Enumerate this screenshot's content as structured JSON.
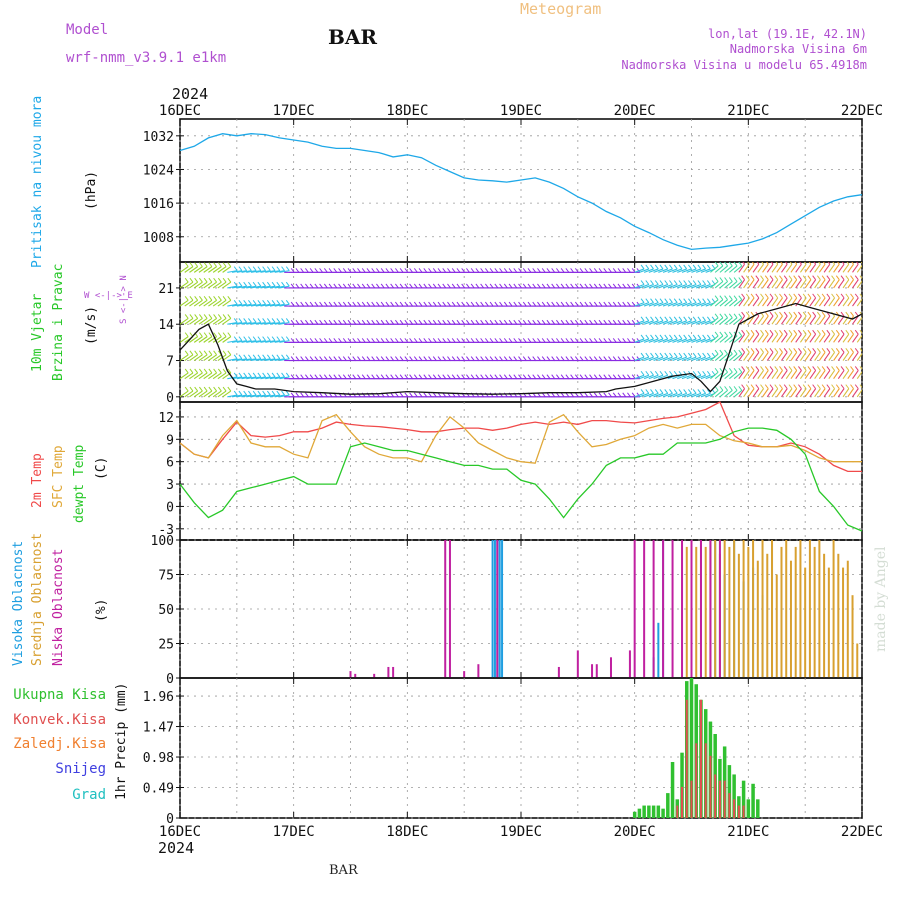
{
  "header": {
    "title": "Meteogram",
    "station": "BAR",
    "model_label": "Model",
    "model_name": "wrf-nmm_v3.9.1 e1km",
    "location": "lon,lat (19.1E, 42.1N)",
    "elevation": "Nadmorska Visina 6m",
    "model_elevation": "Nadmorska Visina u modelu 65.4918m",
    "year_top": "2024",
    "year_bottom": "2024",
    "footer_station": "BAR",
    "credit": "made by Angel"
  },
  "colors": {
    "pressure": "#1ea8e8",
    "temp2m": "#f04a4a",
    "sfc": "#e0a838",
    "dewpt": "#28c828",
    "high_cloud": "#1e9ee0",
    "mid_cloud": "#d8a030",
    "low_cloud": "#c020a0",
    "precip_total": "#30c030",
    "precip_conv": "#e05050",
    "snow": "#4040e0",
    "hail": "#20c0c0",
    "title_color": "#f0c080",
    "meta_color": "#b050d0"
  },
  "x_axis": {
    "labels": [
      "16DEC",
      "17DEC",
      "18DEC",
      "19DEC",
      "20DEC",
      "21DEC",
      "22DEC"
    ],
    "start": 0,
    "end": 144
  },
  "panels": {
    "pressure": {
      "label": "Pritisak na nivou mora",
      "unit": "(hPa)"
    },
    "wind": {
      "label_a": "10m Vjetar",
      "label_b": "Brzina i Pravac",
      "unit": "(m/s)",
      "compass": "W <-|-> E",
      "compass_b": "S <-|-> N"
    },
    "temp": {
      "label_a": "2m Temp",
      "label_b": "SFC Temp",
      "label_c": "dewpt Temp",
      "unit": "(C)"
    },
    "cloud": {
      "label_a": "Visoka Oblacnost",
      "label_b": "Srednja Oblacnost",
      "label_c": "Niska Oblacnost",
      "unit": "(%)"
    },
    "precip": {
      "legend": [
        "Ukupna Kisa",
        "Konvek.Kisa",
        "Zaledj.Kisa",
        "Snijeg",
        "Grad"
      ],
      "unit": "1hr Precip (mm)"
    }
  },
  "chart_data": [
    {
      "type": "line",
      "ylim": [
        1002,
        1036
      ],
      "yticks": [
        1008,
        1016,
        1024,
        1032
      ],
      "ytick_labels": [
        "1008",
        "1016",
        "1024",
        "1032"
      ],
      "series": [
        {
          "x": [
            0,
            3,
            6,
            9,
            12,
            15,
            18,
            21,
            24,
            27,
            30,
            33,
            36,
            39,
            42,
            45,
            48,
            51,
            54,
            57,
            60,
            63,
            66,
            69,
            72,
            75,
            78,
            81,
            84,
            87,
            90,
            93,
            96,
            99,
            102,
            105,
            108,
            111,
            114,
            117,
            120,
            123,
            126,
            129,
            132,
            135,
            138,
            141,
            144
          ],
          "values": [
            1028.5,
            1029.5,
            1031.5,
            1032.5,
            1032,
            1032.5,
            1032.3,
            1031.5,
            1031,
            1030.5,
            1029.5,
            1029,
            1029,
            1028.5,
            1028,
            1027,
            1027.5,
            1026.8,
            1025,
            1023.5,
            1022,
            1021.5,
            1021.3,
            1021,
            1021.5,
            1022,
            1021,
            1019.5,
            1017.5,
            1016,
            1014,
            1012.5,
            1010.5,
            1009,
            1007.3,
            1006,
            1005,
            1005.3,
            1005.5,
            1006,
            1006.5,
            1007.5,
            1009,
            1011,
            1013,
            1015,
            1016.5,
            1017.5,
            1018
          ]
        }
      ]
    },
    {
      "type": "line",
      "ylim": [
        -1,
        26
      ],
      "yticks": [
        0,
        7,
        14,
        21
      ],
      "ytick_labels": [
        "0",
        "7",
        "14",
        "21"
      ],
      "series": [
        {
          "x": [
            0,
            2,
            4,
            6,
            8,
            10,
            12,
            14,
            16,
            18,
            20,
            24,
            30,
            36,
            42,
            48,
            54,
            60,
            66,
            72,
            78,
            84,
            90,
            92,
            96,
            100,
            104,
            108,
            110,
            112,
            114,
            118,
            122,
            126,
            130,
            134,
            138,
            142,
            144
          ],
          "values": [
            9,
            11,
            13,
            14,
            10,
            5,
            2.5,
            2,
            1.5,
            1.5,
            1.5,
            1,
            0.8,
            0.5,
            0.6,
            1,
            0.8,
            0.6,
            0.5,
            0.6,
            0.8,
            0.8,
            1,
            1.5,
            2,
            3,
            4,
            4.5,
            3,
            1,
            3,
            14,
            16,
            17,
            18,
            17,
            16,
            15,
            16
          ]
        }
      ]
    },
    {
      "type": "line",
      "ylim": [
        -4.5,
        14
      ],
      "yticks": [
        -3,
        0,
        3,
        6,
        9,
        12
      ],
      "ytick_labels": [
        "-3",
        "0",
        "3",
        "6",
        "9",
        "12"
      ],
      "series": [
        {
          "x": [
            0,
            3,
            6,
            9,
            12,
            15,
            18,
            21,
            24,
            27,
            30,
            33,
            36,
            39,
            42,
            45,
            48,
            51,
            54,
            57,
            60,
            63,
            66,
            69,
            72,
            75,
            78,
            81,
            84,
            87,
            90,
            93,
            96,
            99,
            102,
            105,
            108,
            111,
            114,
            117,
            120,
            123,
            126,
            129,
            132,
            135,
            138,
            141,
            144
          ],
          "values": [
            8.5,
            7,
            6.5,
            9,
            11.3,
            9.5,
            9.3,
            9.5,
            10,
            10,
            10.5,
            11.3,
            11,
            10.8,
            10.7,
            10.5,
            10.3,
            10,
            10,
            10.3,
            10.5,
            10.5,
            10.2,
            10.5,
            11,
            11.3,
            11,
            11.3,
            11,
            11.5,
            11.5,
            11.3,
            11.2,
            11.5,
            11.8,
            12,
            12.5,
            13,
            14,
            9.5,
            8.2,
            8,
            8,
            8.5,
            8,
            7,
            5.5,
            4.7,
            4.7
          ]
        },
        {
          "x": [
            0,
            3,
            6,
            9,
            12,
            15,
            18,
            21,
            24,
            27,
            30,
            33,
            36,
            39,
            42,
            45,
            48,
            51,
            54,
            57,
            60,
            63,
            66,
            69,
            72,
            75,
            78,
            81,
            84,
            87,
            90,
            93,
            96,
            99,
            102,
            105,
            108,
            111,
            114,
            117,
            120,
            123,
            126,
            129,
            132,
            135,
            138,
            141,
            144
          ],
          "values": [
            8.5,
            7,
            6.5,
            9.5,
            11.5,
            8.5,
            8,
            8,
            7,
            6.5,
            11.5,
            12.3,
            10,
            8,
            7,
            6.5,
            6.5,
            6,
            9.5,
            12,
            10.5,
            8.5,
            7.5,
            6.5,
            6,
            5.8,
            11.3,
            12.3,
            10,
            8,
            8.3,
            9,
            9.5,
            10.5,
            11,
            10.5,
            11,
            11,
            9.5,
            8.8,
            8.5,
            8,
            8,
            8.2,
            7.5,
            6.5,
            6,
            6,
            6
          ]
        },
        {
          "x": [
            0,
            3,
            6,
            9,
            12,
            15,
            18,
            21,
            24,
            27,
            30,
            33,
            36,
            39,
            42,
            45,
            48,
            51,
            54,
            57,
            60,
            63,
            66,
            69,
            72,
            75,
            78,
            81,
            84,
            87,
            90,
            93,
            96,
            99,
            102,
            105,
            108,
            111,
            114,
            117,
            120,
            123,
            126,
            129,
            132,
            135,
            138,
            141,
            144
          ],
          "values": [
            3,
            0.5,
            -1.5,
            -0.5,
            2,
            2.5,
            3,
            3.5,
            4,
            3,
            3,
            3,
            8,
            8.5,
            8,
            7.5,
            7.5,
            7,
            6.5,
            6,
            5.5,
            5.5,
            5,
            5,
            3.5,
            3,
            1,
            -1.5,
            1,
            3,
            5.5,
            6.5,
            6.5,
            7,
            7,
            8.5,
            8.5,
            8.5,
            9,
            10,
            10.5,
            10.5,
            10.2,
            9,
            7,
            2,
            0,
            -2.5,
            -3.3
          ]
        }
      ]
    },
    {
      "type": "bar",
      "ylim": [
        0,
        100
      ],
      "yticks": [
        0,
        25,
        50,
        75,
        100
      ],
      "ytick_labels": [
        "0",
        "25",
        "50",
        "75",
        "100"
      ],
      "series": [
        {
          "x": [
            66,
            66.5,
            67,
            67.5,
            68,
            100,
            101,
            102,
            113,
            115,
            117,
            119,
            121,
            123,
            125
          ],
          "values": [
            100,
            100,
            100,
            100,
            100,
            15,
            40,
            100,
            100,
            75,
            100,
            70,
            80,
            60,
            100
          ]
        },
        {
          "x": [
            107,
            108,
            109,
            110,
            111,
            112,
            113,
            114,
            115,
            116,
            117,
            118,
            119,
            120,
            121,
            122,
            123,
            124,
            125,
            126,
            127,
            128,
            129,
            130,
            131,
            132,
            133,
            134,
            135,
            136,
            137,
            138,
            139,
            140,
            141,
            142,
            143
          ],
          "values": [
            95,
            100,
            95,
            100,
            95,
            100,
            100,
            90,
            100,
            95,
            100,
            90,
            100,
            95,
            100,
            85,
            100,
            90,
            100,
            75,
            95,
            100,
            85,
            95,
            100,
            80,
            100,
            95,
            100,
            90,
            80,
            100,
            90,
            80,
            85,
            60,
            25
          ]
        },
        {
          "x": [
            36,
            37,
            41,
            44,
            45,
            56,
            57,
            60,
            63,
            67,
            80,
            84,
            87,
            88,
            91,
            95,
            96,
            98,
            100,
            102,
            104,
            106,
            108,
            110,
            112,
            114
          ],
          "values": [
            5,
            3,
            3,
            8,
            8,
            100,
            100,
            5,
            10,
            100,
            8,
            20,
            10,
            10,
            15,
            20,
            100,
            100,
            100,
            100,
            100,
            100,
            100,
            100,
            100,
            100
          ]
        }
      ]
    },
    {
      "type": "bar",
      "ylim": [
        0,
        2.25
      ],
      "yticks": [
        0,
        0.49,
        0.98,
        1.47,
        1.96
      ],
      "ytick_labels": [
        "0",
        "0.49",
        "0.98",
        "1.47",
        "1.96"
      ],
      "series": [
        {
          "x": [
            96,
            97,
            98,
            99,
            100,
            101,
            102,
            103,
            104,
            105,
            106,
            107,
            108,
            109,
            110,
            111,
            112,
            113,
            114,
            115,
            116,
            117,
            118,
            119,
            120,
            121,
            122
          ],
          "values": [
            0.1,
            0.15,
            0.2,
            0.2,
            0.2,
            0.2,
            0.15,
            0.4,
            0.9,
            0.3,
            1.05,
            2.2,
            2.25,
            2.15,
            1.9,
            1.75,
            1.55,
            1.35,
            0.95,
            1.15,
            0.85,
            0.7,
            0.35,
            0.6,
            0.3,
            0.55,
            0.3
          ]
        },
        {
          "x": [
            105,
            106,
            107,
            108,
            109,
            110,
            111,
            112,
            113,
            114,
            115,
            116,
            117,
            118,
            119
          ],
          "values": [
            0.2,
            0.5,
            1.9,
            0.6,
            1.2,
            1.9,
            1.2,
            1.0,
            0.7,
            0.6,
            0.6,
            0.4,
            0.3,
            0.2,
            0.2
          ]
        }
      ]
    }
  ]
}
